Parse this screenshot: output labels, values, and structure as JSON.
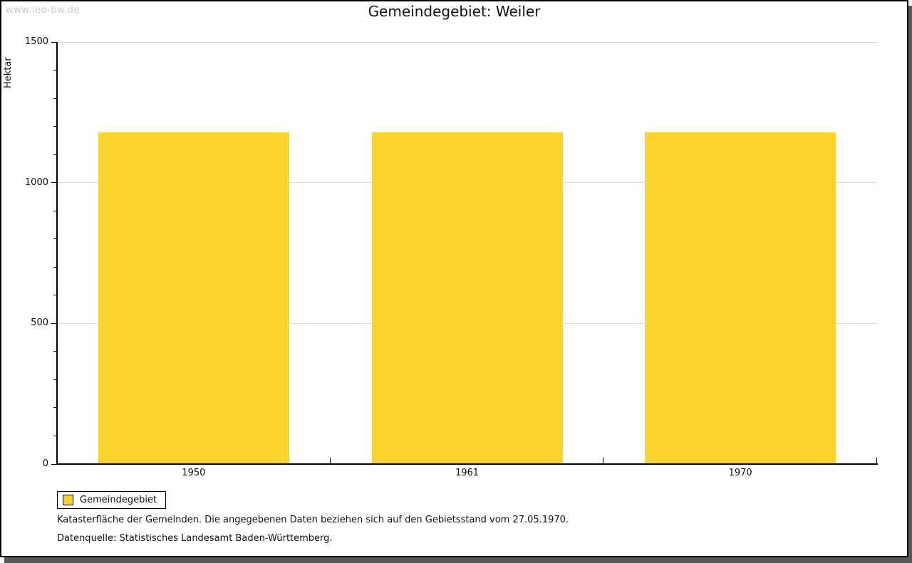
{
  "page": {
    "watermark": "www.leo-bw.de",
    "title": "Gemeindegebiet: Weiler"
  },
  "chart_data": {
    "type": "bar",
    "title": "Gemeindegebiet: Weiler",
    "categories": [
      "1950",
      "1961",
      "1970"
    ],
    "series": [
      {
        "name": "Gemeindegebiet",
        "color": "#FCD42D",
        "values": [
          1180,
          1180,
          1180
        ]
      }
    ],
    "xlabel": "",
    "ylabel": "Hektar",
    "ylim": [
      0,
      1500
    ],
    "y_major_ticks": [
      0,
      500,
      1000,
      1500
    ],
    "y_minor_tick_interval": 100,
    "grid": "horizontal-major",
    "legend_position": "bottom-left-outside"
  },
  "legend": {
    "items": [
      {
        "label": "Gemeindegebiet",
        "swatch_color": "#FCD42D"
      }
    ]
  },
  "footnotes": {
    "line1": "Katasterfläche der Gemeinden. Die angegebenen Daten beziehen sich auf den Gebietsstand vom 27.05.1970.",
    "line2": "Datenquelle: Statistisches Landesamt Baden-Württemberg."
  },
  "colors": {
    "bar": "#FCD42D",
    "axis": "#000000",
    "gridline": "#DCDCDC",
    "watermark": "#C9C9C9",
    "shadow": "#58585A",
    "background": "#FFFFFF"
  }
}
